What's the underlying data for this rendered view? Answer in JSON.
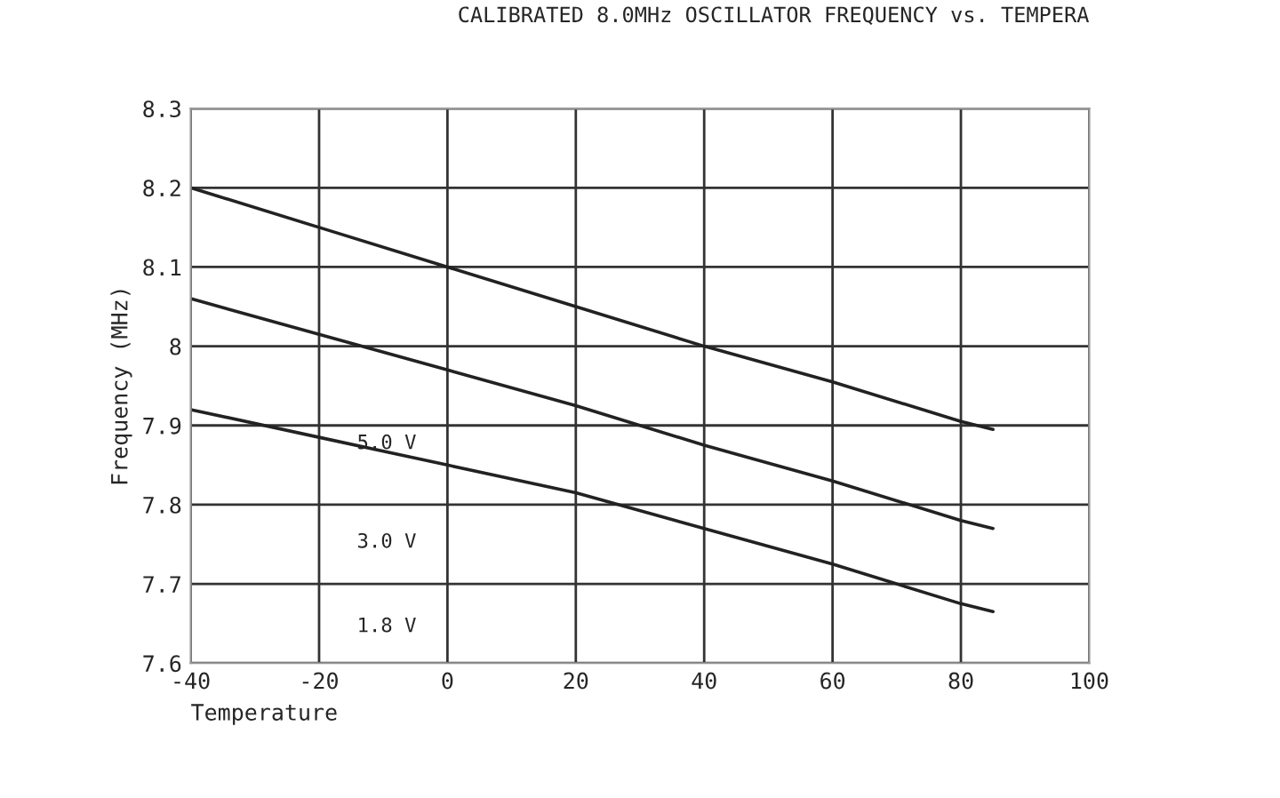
{
  "chart_data": {
    "type": "line",
    "title": "CALIBRATED 8.0MHz OSCILLATOR FREQUENCY vs. TEMPERA",
    "xlabel": "Temperature",
    "ylabel": "Frequency (MHz)",
    "x": [
      -40,
      -20,
      0,
      20,
      40,
      60,
      80,
      85
    ],
    "series": [
      {
        "color": "#222222",
        "values": [
          8.2,
          8.15,
          8.1,
          8.05,
          8.0,
          7.955,
          7.905,
          7.895
        ]
      },
      {
        "color": "#222222",
        "values": [
          8.06,
          8.015,
          7.97,
          7.925,
          7.875,
          7.83,
          7.78,
          7.77
        ]
      },
      {
        "color": "#222222",
        "values": [
          7.92,
          7.885,
          7.85,
          7.815,
          7.77,
          7.725,
          7.675,
          7.665
        ]
      }
    ],
    "annotations": [
      "5.0 V",
      "3.0 V",
      "1.8 V"
    ],
    "xlim": [
      -40,
      100
    ],
    "xticks": [
      -40,
      -20,
      0,
      20,
      40,
      60,
      80,
      100
    ],
    "ylim": [
      7.6,
      8.3
    ],
    "yticks": [
      7.6,
      7.7,
      7.8,
      7.9,
      8,
      8.1,
      8.2,
      8.3
    ],
    "grid": true,
    "legend": false,
    "marker": "none",
    "line_style": "solid"
  }
}
